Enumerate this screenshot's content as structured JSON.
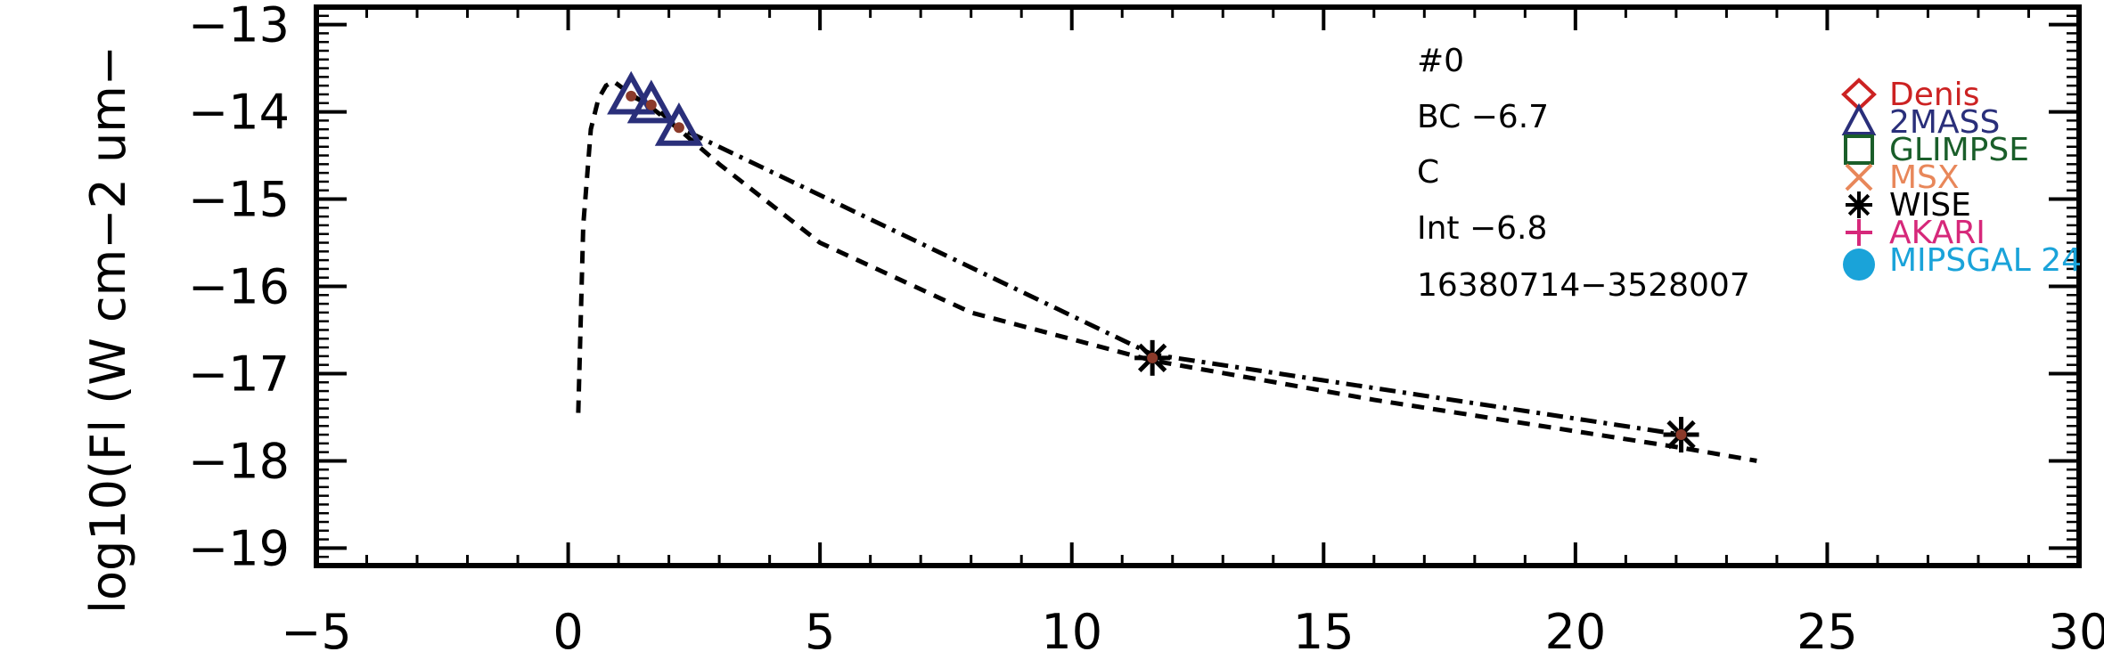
{
  "chart_data": {
    "type": "line",
    "xlabel": "",
    "ylabel": "log10(Fl (W cm−2 um−",
    "xlim": [
      -5,
      30
    ],
    "ylim": [
      -19.2,
      -12.8
    ],
    "x_ticks": [
      -5,
      0,
      5,
      10,
      15,
      20,
      25,
      30
    ],
    "x_tick_labels": [
      "−5",
      "0",
      "5",
      "10",
      "15",
      "20",
      "25",
      "30"
    ],
    "y_ticks": [
      -13,
      -14,
      -15,
      -16,
      -17,
      -18,
      -19
    ],
    "y_tick_labels": [
      "−13",
      "−14",
      "−15",
      "−16",
      "−17",
      "−18",
      "−19"
    ],
    "annotations": [
      "#0",
      "BC −6.7",
      "C",
      "Int −6.8",
      "16380714−3528007"
    ],
    "legend": [
      {
        "name": "Denis",
        "marker": "diamond",
        "color": "#cc2222"
      },
      {
        "name": "2MASS",
        "marker": "triangle",
        "color": "#2a2f7a"
      },
      {
        "name": "GLIMPSE",
        "marker": "square",
        "color": "#1a5e2a"
      },
      {
        "name": "MSX",
        "marker": "x",
        "color": "#e8875a"
      },
      {
        "name": "WISE",
        "marker": "asterisk",
        "color": "#000000"
      },
      {
        "name": "AKARI",
        "marker": "plus",
        "color": "#d6287a"
      },
      {
        "name": "MIPSGAL 24",
        "marker": "circle",
        "color": "#1aa3d9"
      }
    ],
    "legend_placement": "top-right",
    "series": [
      {
        "style": "dashed",
        "color": "#000000",
        "x": [
          0.2,
          0.3,
          0.45,
          0.6,
          0.75,
          0.9,
          1.25,
          1.65,
          2.2,
          3.0,
          5.0,
          8.0,
          11.6,
          16.0,
          22.1,
          23.6
        ],
        "y": [
          -17.45,
          -15.3,
          -14.2,
          -13.85,
          -13.7,
          -13.65,
          -13.8,
          -13.95,
          -14.2,
          -14.6,
          -15.5,
          -16.3,
          -16.85,
          -17.3,
          -17.85,
          -18.0
        ]
      },
      {
        "style": "dashdot",
        "color": "#000000",
        "x": [
          1.25,
          1.65,
          2.2,
          11.6,
          22.1
        ],
        "y": [
          -13.82,
          -13.92,
          -14.18,
          -16.78,
          -17.7
        ]
      }
    ],
    "points": [
      {
        "survey": "2MASS",
        "marker": "triangle",
        "x": 1.25,
        "y": -13.82
      },
      {
        "survey": "2MASS",
        "marker": "triangle",
        "x": 1.65,
        "y": -13.92
      },
      {
        "survey": "2MASS",
        "marker": "triangle",
        "x": 2.2,
        "y": -14.18
      },
      {
        "survey": "WISE",
        "marker": "asterisk",
        "x": 11.6,
        "y": -16.82
      },
      {
        "survey": "WISE",
        "marker": "asterisk",
        "x": 22.1,
        "y": -17.7
      }
    ]
  },
  "colors": {
    "axis": "#000000",
    "point_dot": "#8b3a2a"
  }
}
